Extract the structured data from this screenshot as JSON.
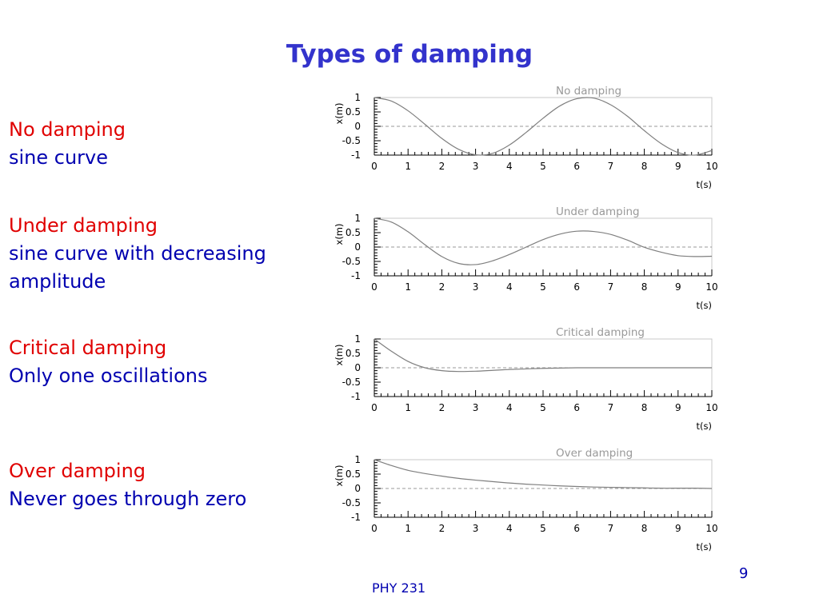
{
  "slide": {
    "title": "Types of damping",
    "footer": "PHY 231",
    "page_number": "9"
  },
  "blocks": [
    {
      "heading": "No damping",
      "lines": [
        "sine curve"
      ]
    },
    {
      "heading": "Under damping",
      "lines": [
        "sine curve with decreasing",
        "amplitude"
      ]
    },
    {
      "heading": "Critical damping",
      "lines": [
        "Only one oscillations"
      ]
    },
    {
      "heading": "Over damping",
      "lines": [
        "Never goes through zero"
      ]
    }
  ],
  "colors": {
    "title": "#3333cc",
    "heading": "#e00000",
    "text": "#0000b0",
    "curve": "#7f7f7f",
    "zero_line": "#9a9a9a",
    "chart_title": "#999999",
    "frame": "#c8c8c8"
  },
  "chart_data": [
    {
      "type": "line",
      "title": "No damping",
      "xlabel": "t(s)",
      "ylabel": "x(m)",
      "xlim": [
        0,
        10
      ],
      "ylim": [
        -1,
        1
      ],
      "xticks": [
        "0",
        "1",
        "2",
        "3",
        "4",
        "5",
        "6",
        "7",
        "8",
        "9",
        "10"
      ],
      "yticks": [
        "1",
        "0.5",
        "0",
        "-0.5",
        "-1"
      ],
      "zero_line": "dashed",
      "series": [
        {
          "x": [
            0,
            0.5,
            1,
            1.5,
            2,
            2.5,
            3,
            3.5,
            4,
            4.5,
            5,
            5.5,
            6,
            6.5,
            7,
            7.5,
            8,
            8.5,
            9,
            9.5,
            10
          ],
          "y": [
            1,
            0.88,
            0.54,
            0.07,
            -0.42,
            -0.8,
            -0.99,
            -0.94,
            -0.65,
            -0.21,
            0.28,
            0.71,
            0.96,
            0.98,
            0.75,
            0.35,
            -0.15,
            -0.6,
            -0.91,
            -1,
            -0.84
          ]
        }
      ]
    },
    {
      "type": "line",
      "title": "Under damping",
      "xlabel": "t(s)",
      "ylabel": "x(m)",
      "xlim": [
        0,
        10
      ],
      "ylim": [
        -1,
        1
      ],
      "xticks": [
        "0",
        "1",
        "2",
        "3",
        "4",
        "5",
        "6",
        "7",
        "8",
        "9",
        "10"
      ],
      "yticks": [
        "1",
        "0.5",
        "0",
        "-0.5",
        "-1"
      ],
      "zero_line": "dashed",
      "series": [
        {
          "x": [
            0,
            0.5,
            1,
            1.5,
            2,
            2.5,
            3,
            3.5,
            4,
            4.5,
            5,
            5.5,
            6,
            6.5,
            7,
            7.5,
            8,
            8.5,
            9,
            9.5,
            10
          ],
          "y": [
            1,
            0.87,
            0.53,
            0.08,
            -0.33,
            -0.57,
            -0.61,
            -0.48,
            -0.26,
            0,
            0.26,
            0.45,
            0.55,
            0.54,
            0.44,
            0.24,
            -0.01,
            -0.18,
            -0.3,
            -0.33,
            -0.32
          ]
        }
      ]
    },
    {
      "type": "line",
      "title": "Critical damping",
      "xlabel": "t(s)",
      "ylabel": "x(m)",
      "xlim": [
        0,
        10
      ],
      "ylim": [
        -1,
        1
      ],
      "xticks": [
        "0",
        "1",
        "2",
        "3",
        "4",
        "5",
        "6",
        "7",
        "8",
        "9",
        "10"
      ],
      "yticks": [
        "1",
        "0.5",
        "0",
        "-0.5",
        "-1"
      ],
      "zero_line": "dashed",
      "series": [
        {
          "x": [
            0,
            0.5,
            1,
            1.5,
            2,
            2.5,
            3,
            3.5,
            4,
            4.5,
            5,
            5.5,
            6,
            6.5,
            7,
            7.5,
            8,
            8.5,
            9,
            9.5,
            10
          ],
          "y": [
            1,
            0.58,
            0.22,
            0,
            -0.1,
            -0.13,
            -0.12,
            -0.09,
            -0.06,
            -0.04,
            -0.02,
            -0.01,
            0,
            0,
            0,
            0,
            0,
            0,
            0,
            0,
            0
          ]
        }
      ]
    },
    {
      "type": "line",
      "title": "Over damping",
      "xlabel": "t(s)",
      "ylabel": "x(m)",
      "xlim": [
        0,
        10
      ],
      "ylim": [
        -1,
        1
      ],
      "xticks": [
        "0",
        "1",
        "2",
        "3",
        "4",
        "5",
        "6",
        "7",
        "8",
        "9",
        "10"
      ],
      "yticks": [
        "1",
        "0.5",
        "0",
        "-0.5",
        "-1"
      ],
      "zero_line": "dashed",
      "series": [
        {
          "x": [
            0,
            0.5,
            1,
            1.5,
            2,
            2.5,
            3,
            3.5,
            4,
            4.5,
            5,
            5.5,
            6,
            6.5,
            7,
            7.5,
            8,
            8.5,
            9,
            9.5,
            10
          ],
          "y": [
            1,
            0.8,
            0.63,
            0.52,
            0.43,
            0.35,
            0.29,
            0.24,
            0.19,
            0.15,
            0.12,
            0.09,
            0.07,
            0.05,
            0.04,
            0.03,
            0.02,
            0.01,
            0.01,
            0.01,
            0
          ]
        }
      ]
    }
  ]
}
